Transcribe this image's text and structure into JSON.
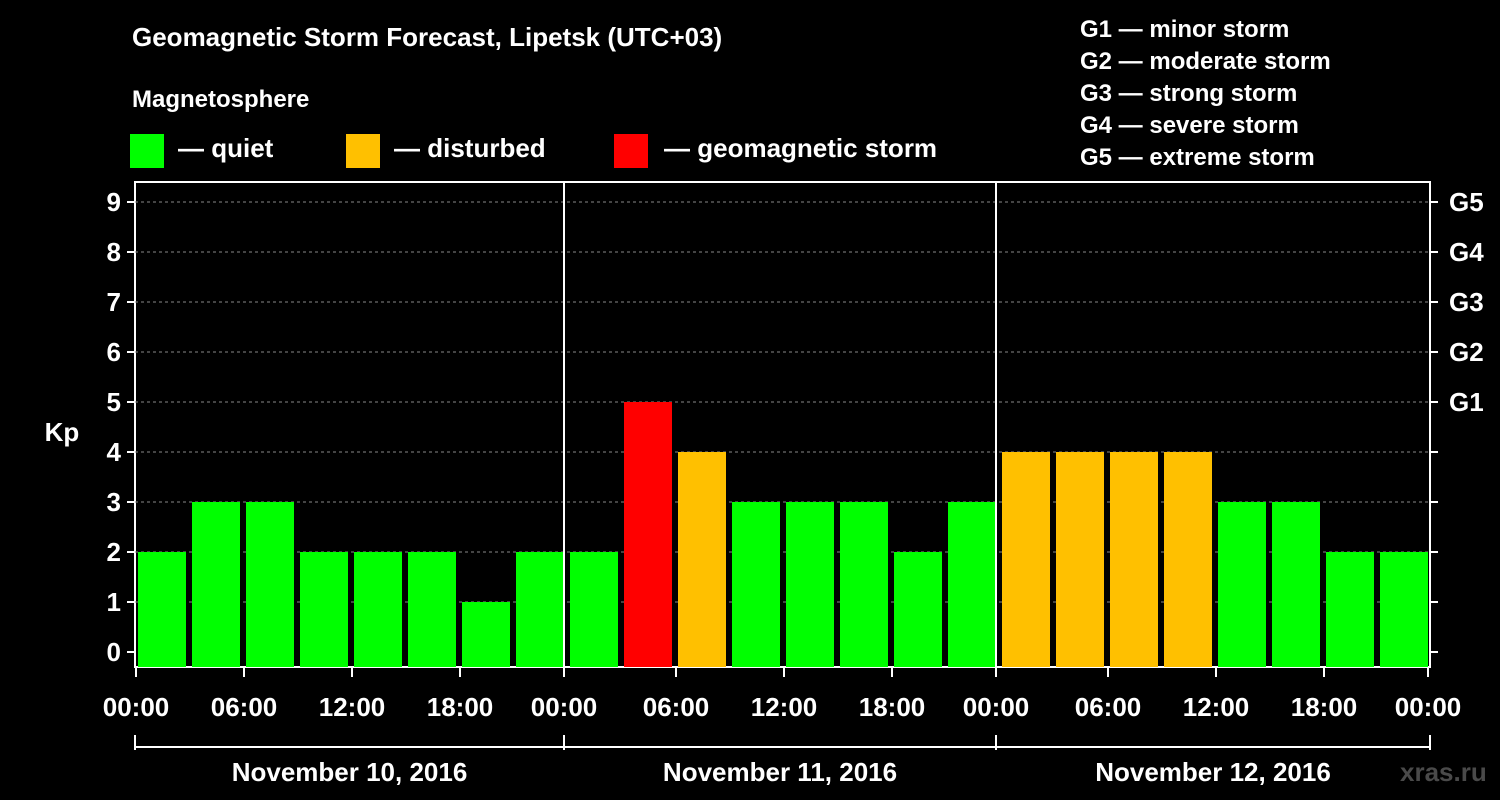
{
  "header": {
    "title": "Geomagnetic Storm Forecast, Lipetsk (UTC+03)",
    "magnetosphere_label": "Magnetosphere"
  },
  "legend": {
    "items": [
      {
        "label": "— quiet",
        "color": "#00ff00"
      },
      {
        "label": "— disturbed",
        "color": "#ffc000"
      },
      {
        "label": "— geomagnetic storm",
        "color": "#ff0000"
      }
    ]
  },
  "storm_legend": [
    "G1 — minor storm",
    "G2 — moderate storm",
    "G3 — strong storm",
    "G4 — severe storm",
    "G5 — extreme storm"
  ],
  "watermark": "xras.ru",
  "chart_data": {
    "type": "bar",
    "title": "Geomagnetic Storm Forecast, Lipetsk (UTC+03)",
    "ylabel": "Kp",
    "ylim": [
      0,
      9
    ],
    "yticks": [
      "0",
      "1",
      "2",
      "3",
      "4",
      "5",
      "6",
      "7",
      "8",
      "9"
    ],
    "right_axis_labels": [
      {
        "kp": 5,
        "label": "G1"
      },
      {
        "kp": 6,
        "label": "G2"
      },
      {
        "kp": 7,
        "label": "G3"
      },
      {
        "kp": 8,
        "label": "G4"
      },
      {
        "kp": 9,
        "label": "G5"
      }
    ],
    "interval_hours": 3,
    "xtick_labels": [
      "00:00",
      "06:00",
      "12:00",
      "18:00",
      "00:00",
      "06:00",
      "12:00",
      "18:00",
      "00:00",
      "06:00",
      "12:00",
      "18:00",
      "00:00"
    ],
    "days": [
      "November 10, 2016",
      "November 11, 2016",
      "November 12, 2016"
    ],
    "values": [
      2,
      3,
      3,
      2,
      2,
      2,
      1,
      2,
      2,
      5,
      4,
      3,
      3,
      3,
      2,
      3,
      4,
      4,
      4,
      4,
      3,
      3,
      2,
      2
    ],
    "colors": {
      "quiet": "#00ff00",
      "disturbed": "#ffc000",
      "storm": "#ff0000"
    },
    "grid": true
  }
}
